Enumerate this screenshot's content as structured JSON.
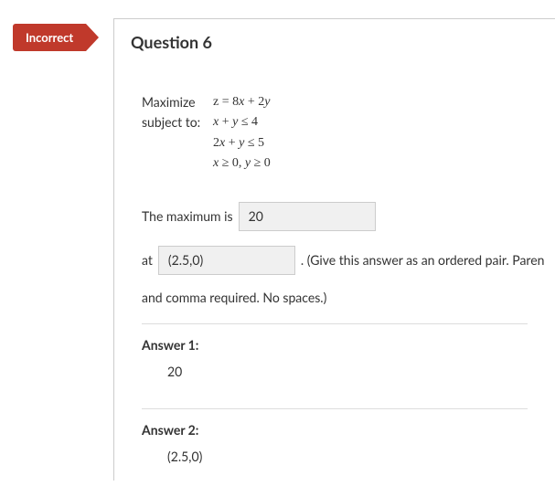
{
  "badge": {
    "label": "Incorrect"
  },
  "header": {
    "title": "Question 6"
  },
  "lp": {
    "maximize_label": "Maximize",
    "objective": "z = 8x + 2y",
    "subject_label": "subject to:",
    "c1": "x + y ≤ 4",
    "c2": "2x + y ≤ 5",
    "c3": "x ≥ 0,  y ≥ 0"
  },
  "prompt": {
    "max_text": "The maximum is",
    "max_value": "20",
    "at_text": "at",
    "at_value": "(2.5,0)",
    "hint1": ".  (Give this answer as an ordered pair. Paren",
    "hint2": "and comma required. No spaces.)"
  },
  "answers": {
    "label1": "Answer 1:",
    "value1": "20",
    "label2": "Answer 2:",
    "value2": "(2.5,0)"
  },
  "colors": {
    "badge_bg": "#c0392b",
    "border": "#cccccc"
  }
}
